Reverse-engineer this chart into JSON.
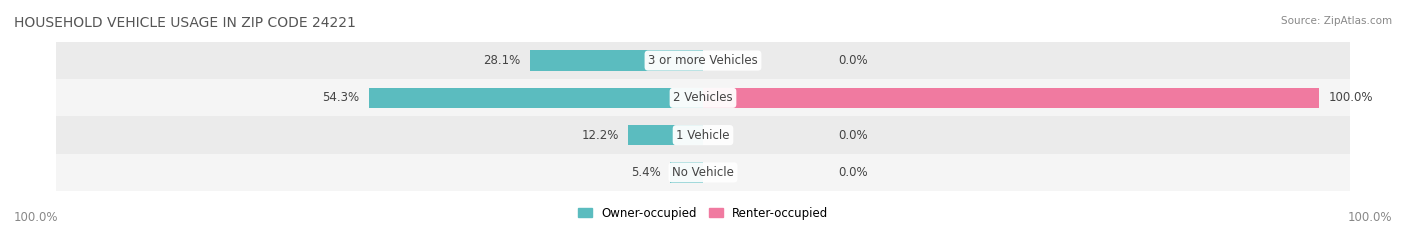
{
  "title": "HOUSEHOLD VEHICLE USAGE IN ZIP CODE 24221",
  "source": "Source: ZipAtlas.com",
  "categories": [
    "No Vehicle",
    "1 Vehicle",
    "2 Vehicles",
    "3 or more Vehicles"
  ],
  "owner_values": [
    5.4,
    12.2,
    54.3,
    28.1
  ],
  "renter_values": [
    0.0,
    0.0,
    100.0,
    0.0
  ],
  "owner_color": "#5bbcbf",
  "renter_color": "#f07aa0",
  "owner_label": "Owner-occupied",
  "renter_label": "Renter-occupied",
  "left_label": "100.0%",
  "right_label": "100.0%",
  "title_fontsize": 10,
  "label_fontsize": 8.5,
  "source_fontsize": 7.5,
  "bar_height": 0.55,
  "fig_bg_color": "#ffffff",
  "row_colors": [
    "#f5f5f5",
    "#ebebeb",
    "#f5f5f5",
    "#ebebeb"
  ]
}
